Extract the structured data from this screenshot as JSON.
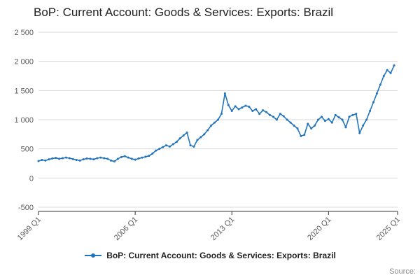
{
  "title": "BoP: Current Account: Goods & Services: Exports: Brazil",
  "legend": {
    "label": "BoP: Current Account: Goods & Services: Exports: Brazil"
  },
  "source": "Source:",
  "chart_data": {
    "type": "line",
    "title": "BoP: Current Account: Goods & Services: Exports: Brazil",
    "color": "#2073bc",
    "grid_color": "#d9d9d9",
    "axis_color": "#333333",
    "tick_label_color": "#595959",
    "legend_position": "bottom",
    "grid": "horizontal-only",
    "ylim": [
      -500,
      2500
    ],
    "y_ticks": [
      {
        "value": -500,
        "label": "-500"
      },
      {
        "value": 0,
        "label": "0"
      },
      {
        "value": 500,
        "label": "500"
      },
      {
        "value": 1000,
        "label": "1 000"
      },
      {
        "value": 1500,
        "label": "1 500"
      },
      {
        "value": 2000,
        "label": "2 000"
      },
      {
        "value": 2500,
        "label": "2 500"
      }
    ],
    "x_axis_max_index": 104,
    "x_ticks": [
      {
        "index": 0,
        "label": "1999 Q1"
      },
      {
        "index": 28,
        "label": "2006 Q1"
      },
      {
        "index": 56,
        "label": "2013 Q1"
      },
      {
        "index": 84,
        "label": "2020 Q1"
      },
      {
        "index": 104,
        "label": "2025 Q1"
      }
    ],
    "x_start": "1999 Q1",
    "frequency": "quarterly",
    "values": [
      290,
      310,
      300,
      320,
      335,
      345,
      330,
      340,
      350,
      340,
      325,
      310,
      300,
      320,
      335,
      330,
      320,
      340,
      350,
      340,
      330,
      300,
      285,
      330,
      360,
      375,
      350,
      330,
      315,
      335,
      350,
      365,
      380,
      420,
      470,
      500,
      530,
      560,
      540,
      580,
      620,
      680,
      730,
      780,
      560,
      540,
      650,
      700,
      750,
      820,
      900,
      950,
      1000,
      1100,
      1450,
      1250,
      1150,
      1230,
      1180,
      1210,
      1240,
      1220,
      1150,
      1180,
      1100,
      1160,
      1130,
      1080,
      1050,
      1000,
      1100,
      1060,
      1000,
      950,
      900,
      850,
      720,
      740,
      930,
      850,
      900,
      1000,
      1050,
      980,
      1010,
      950,
      1080,
      1040,
      1000,
      870,
      1050,
      1080,
      1100,
      770,
      900,
      1000,
      1150,
      1300,
      1450,
      1600,
      1750,
      1850,
      1800,
      1930
    ]
  }
}
